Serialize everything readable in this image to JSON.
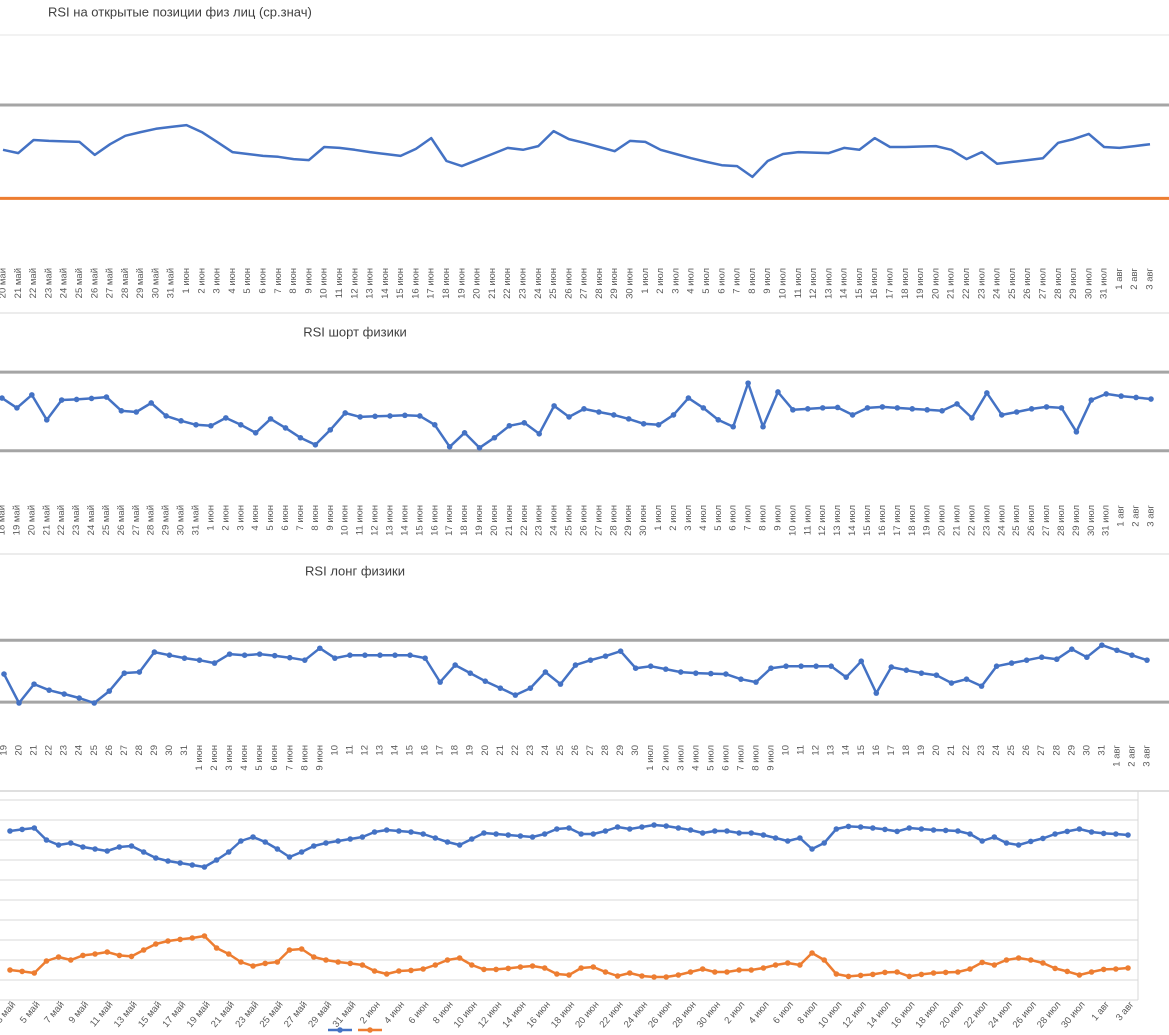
{
  "chart_data": [
    {
      "type": "line",
      "title": "RSI на открытые позиции физ лиц (ср.знач)",
      "markers": false,
      "categories": [
        "20 май",
        "21 май",
        "22 май",
        "23 май",
        "24 май",
        "25 май",
        "26 май",
        "27 май",
        "28 май",
        "29 май",
        "30 май",
        "31 май",
        "1 июн",
        "2 июн",
        "3 июн",
        "4 июн",
        "5 июн",
        "6 июн",
        "7 июн",
        "8 июн",
        "9 июн",
        "10 июн",
        "11 июн",
        "12 июн",
        "13 июн",
        "14 июн",
        "15 июн",
        "16 июн",
        "17 июн",
        "18 июн",
        "19 июн",
        "20 июн",
        "21 июн",
        "22 июн",
        "23 июн",
        "24 июн",
        "25 июн",
        "26 июн",
        "27 июн",
        "28 июн",
        "29 июн",
        "30 июн",
        "1 июл",
        "2 июл",
        "3 июл",
        "4 июл",
        "5 июл",
        "6 июл",
        "7 июл",
        "8 июл",
        "9 июл",
        "10 июл",
        "11 июл",
        "12 июл",
        "13 июл",
        "14 июл",
        "15 июл",
        "16 июл",
        "17 июл",
        "18 июл",
        "19 июл",
        "20 июл",
        "21 июл",
        "22 июл",
        "23 июл",
        "24 июл",
        "25 июл",
        "26 июл",
        "27 июл",
        "28 июл",
        "29 июл",
        "30 июл",
        "31 июл",
        "1 авг",
        "2 авг",
        "3 авг"
      ],
      "series": [
        {
          "color": "#4472c4",
          "values": [
            60.4,
            59.7,
            62.5,
            62.3,
            62.2,
            62.1,
            59.3,
            61.6,
            63.4,
            64.2,
            64.9,
            65.3,
            65.7,
            64.2,
            62.1,
            59.9,
            59.5,
            59.1,
            58.9,
            58.4,
            58.2,
            61.0,
            60.8,
            60.4,
            59.9,
            59.5,
            59.1,
            60.6,
            62.9,
            58.0,
            56.9,
            58.2,
            59.5,
            60.8,
            60.4,
            61.2,
            64.4,
            62.7,
            61.9,
            61.0,
            60.1,
            62.3,
            62.1,
            60.4,
            59.5,
            58.6,
            57.8,
            57.1,
            56.9,
            54.6,
            58.0,
            59.5,
            59.9,
            59.8,
            59.7,
            60.8,
            60.4,
            62.9,
            61.0,
            61.0,
            61.1,
            61.2,
            60.4,
            58.4,
            59.9,
            57.4,
            57.8,
            58.2,
            58.6,
            61.9,
            62.7,
            63.8,
            61.0,
            60.8,
            61.2,
            61.6
          ]
        }
      ],
      "ref_lines": [
        {
          "value": 70,
          "color": "#a5a5a5"
        },
        {
          "value": 50,
          "color": "#ed7d31"
        }
      ],
      "ylim": [
        40,
        85
      ],
      "grid": false
    },
    {
      "type": "line",
      "title": "RSI шорт физики",
      "markers": true,
      "categories": [
        "18 май",
        "19 май",
        "20 май",
        "21 май",
        "22 май",
        "23 май",
        "24 май",
        "25 май",
        "26 май",
        "27 май",
        "28 май",
        "29 май",
        "30 май",
        "31 май",
        "1 июн",
        "2 июн",
        "3 июн",
        "4 июн",
        "5 июн",
        "6 июн",
        "7 июн",
        "8 июн",
        "9 июн",
        "10 июн",
        "11 июн",
        "12 июн",
        "13 июн",
        "14 июн",
        "15 июн",
        "16 июн",
        "17 июн",
        "18 июн",
        "19 июн",
        "20 июн",
        "21 июн",
        "22 июн",
        "23 июн",
        "24 июн",
        "25 июн",
        "26 июн",
        "27 июн",
        "28 июн",
        "29 июн",
        "30 июн",
        "1 июл",
        "2 июл",
        "3 июл",
        "4 июл",
        "5 июл",
        "6 июл",
        "7 июл",
        "8 июл",
        "9 июл",
        "10 июл",
        "11 июл",
        "12 июл",
        "13 июл",
        "14 июл",
        "15 июл",
        "16 июл",
        "17 июл",
        "18 июл",
        "19 июл",
        "20 июл",
        "21 июл",
        "22 июл",
        "23 июл",
        "24 июл",
        "25 июл",
        "26 июл",
        "27 июл",
        "28 июл",
        "29 июл",
        "30 июл",
        "31 июл",
        "1 авг",
        "2 авг",
        "3 авг"
      ],
      "series": [
        {
          "color": "#4472c4",
          "values": [
            56.8,
            51.8,
            58.4,
            45.7,
            55.8,
            56.1,
            56.6,
            57.3,
            50.3,
            49.7,
            54.3,
            47.7,
            45.2,
            43.2,
            42.7,
            46.7,
            43.2,
            39.1,
            46.2,
            41.6,
            36.6,
            33.0,
            40.6,
            49.2,
            47.2,
            47.5,
            47.7,
            48.0,
            47.7,
            43.2,
            32.0,
            39.1,
            31.5,
            36.6,
            42.7,
            44.2,
            38.6,
            52.8,
            47.2,
            51.3,
            49.7,
            48.2,
            46.2,
            43.7,
            43.2,
            48.2,
            56.8,
            51.8,
            45.7,
            42.2,
            64.4,
            42.2,
            59.9,
            50.8,
            51.3,
            51.8,
            52.0,
            48.2,
            51.8,
            52.3,
            51.8,
            51.3,
            50.8,
            50.3,
            53.8,
            46.7,
            59.4,
            48.2,
            49.7,
            51.3,
            52.3,
            51.8,
            39.6,
            55.8,
            58.9,
            57.8,
            57.1,
            56.3
          ]
        }
      ],
      "ref_lines": [
        {
          "value": 70,
          "color": "#a5a5a5"
        },
        {
          "value": 30,
          "color": "#a5a5a5"
        }
      ],
      "ylim": [
        10,
        95
      ],
      "grid": false
    },
    {
      "type": "line",
      "title": "RSI лонг физики",
      "markers": true,
      "categories": [
        "19",
        "20",
        "21",
        "22",
        "23",
        "24",
        "25",
        "26",
        "27",
        "28",
        "29",
        "30",
        "31",
        "1 июн",
        "2 июн",
        "3 июн",
        "4 июн",
        "5 июн",
        "6 июн",
        "7 июн",
        "8 июн",
        "9 июн",
        "10",
        "11",
        "12",
        "13",
        "14",
        "15",
        "16",
        "17",
        "18",
        "19",
        "20",
        "21",
        "22",
        "23",
        "24",
        "25",
        "26",
        "27",
        "28",
        "29",
        "30",
        "1 июл",
        "2 июл",
        "3 июл",
        "4 июл",
        "5 июл",
        "6 июл",
        "7 июл",
        "8 июл",
        "9 июл",
        "10",
        "11",
        "12",
        "13",
        "14",
        "15",
        "16",
        "17",
        "18",
        "19",
        "20",
        "21",
        "22",
        "23",
        "24",
        "25",
        "26",
        "27",
        "28",
        "29",
        "30",
        "31",
        "1 авг",
        "2 авг",
        "3 авг"
      ],
      "series": [
        {
          "color": "#4472c4",
          "values": [
            48.1,
            29.4,
            41.6,
            37.7,
            35.2,
            32.6,
            29.4,
            37.1,
            48.7,
            49.4,
            62.3,
            60.3,
            58.4,
            57.1,
            55.2,
            61.0,
            60.3,
            61.0,
            60.0,
            58.7,
            57.1,
            64.8,
            58.4,
            60.3,
            60.3,
            60.3,
            60.3,
            60.3,
            58.4,
            42.9,
            53.9,
            48.7,
            43.5,
            39.0,
            34.5,
            39.0,
            49.4,
            41.6,
            53.9,
            57.1,
            59.7,
            62.9,
            51.9,
            53.2,
            51.3,
            49.4,
            48.7,
            48.4,
            48.1,
            44.8,
            42.9,
            51.9,
            53.2,
            53.2,
            53.2,
            53.2,
            46.1,
            56.4,
            35.8,
            52.6,
            50.6,
            48.7,
            47.4,
            42.3,
            44.8,
            40.3,
            53.2,
            55.2,
            57.1,
            59.0,
            57.7,
            64.2,
            59.0,
            66.8,
            63.5,
            60.3,
            57.1
          ]
        }
      ],
      "ref_lines": [
        {
          "value": 70,
          "color": "#a5a5a5"
        },
        {
          "value": 30,
          "color": "#a5a5a5"
        }
      ],
      "ylim": [
        10,
        85
      ],
      "grid": false
    },
    {
      "type": "line",
      "markers": true,
      "categories": [
        "3 май",
        null,
        "5 май",
        null,
        "7 май",
        null,
        "9 май",
        null,
        "11 май",
        null,
        "13 май",
        null,
        "15 май",
        null,
        "17 май",
        null,
        "19 май",
        null,
        "21 май",
        null,
        "23 май",
        null,
        "25 май",
        null,
        "27 май",
        null,
        "29 май",
        null,
        "31 май",
        null,
        "2 июн",
        null,
        "4 июн",
        null,
        "6 июн",
        null,
        "8 июн",
        null,
        "10 июн",
        null,
        "12 июн",
        null,
        "14 июн",
        null,
        "16 июн",
        null,
        "18 июн",
        null,
        "20 июн",
        null,
        "22 июн",
        null,
        "24 июн",
        null,
        "26 июн",
        null,
        "28 июн",
        null,
        "30 июн",
        null,
        "2 июл",
        null,
        "4 июл",
        null,
        "6 июл",
        null,
        "8 июл",
        null,
        "10 июл",
        null,
        "12 июл",
        null,
        "14 июл",
        null,
        "16 июл",
        null,
        "18 июл",
        null,
        "20 июл",
        null,
        "22 июл",
        null,
        "24 июл",
        null,
        "26 июл",
        null,
        "28 июл",
        null,
        "30 июл",
        null,
        "1 авг",
        null,
        "3 авг"
      ],
      "series": [
        {
          "color": "#4472c4",
          "values": [
            84.5,
            85.3,
            86,
            80,
            77.5,
            78.5,
            76.5,
            75.5,
            74.5,
            76.5,
            77,
            74,
            71,
            69.5,
            68.5,
            67.5,
            66.5,
            70,
            74,
            79.5,
            81.5,
            79,
            75.5,
            71.5,
            74,
            77,
            78.5,
            79.5,
            80.5,
            81.5,
            84,
            85,
            84.5,
            84,
            83,
            81,
            79,
            77.5,
            80.5,
            83.5,
            83,
            82.5,
            82,
            81.5,
            83,
            85.5,
            86,
            83,
            83,
            84.5,
            86.5,
            85.5,
            86.5,
            87.5,
            87,
            86,
            85,
            83.5,
            84.5,
            84.5,
            83.5,
            83.5,
            82.5,
            81,
            79.5,
            81,
            75.5,
            78.5,
            85.5,
            86.8,
            86.5,
            86,
            85.3,
            84.3,
            86,
            85.5,
            85,
            84.8,
            84.5,
            83,
            79.5,
            81.5,
            78.5,
            77.5,
            79.3,
            80.8,
            83,
            84.3,
            85.5,
            84,
            83.3,
            83,
            82.5
          ]
        },
        {
          "color": "#ed7d31",
          "values": [
            15,
            14.3,
            13.5,
            19.5,
            21.5,
            20,
            22.3,
            23,
            24,
            22.3,
            21.8,
            25,
            28,
            29.5,
            30.3,
            31,
            32,
            26,
            23,
            19,
            17,
            18.3,
            19,
            25,
            25.5,
            21.5,
            20,
            19,
            18.3,
            17.5,
            14.5,
            13,
            14.5,
            14.8,
            15.5,
            17.5,
            20,
            21,
            17.5,
            15.3,
            15.3,
            15.8,
            16.5,
            17,
            16,
            13,
            12.5,
            16,
            16.5,
            14,
            12,
            13.5,
            12,
            11.5,
            11.5,
            12.5,
            14,
            15.5,
            14,
            14,
            15,
            15,
            16,
            17.5,
            18.5,
            17.5,
            23.5,
            20,
            13,
            11.8,
            12.3,
            12.8,
            13.8,
            14,
            11.8,
            12.8,
            13.5,
            13.8,
            14,
            15.5,
            18.8,
            17.5,
            20,
            21,
            20,
            18.5,
            15.8,
            14.3,
            12.5,
            14,
            15.3,
            15.5,
            16
          ]
        }
      ],
      "ylim": [
        0,
        100
      ],
      "yticks": [
        0,
        10,
        20,
        30,
        40,
        50,
        60,
        70,
        80,
        90,
        100
      ],
      "grid": true,
      "ytick_labels": false,
      "legend": "bottom"
    }
  ]
}
